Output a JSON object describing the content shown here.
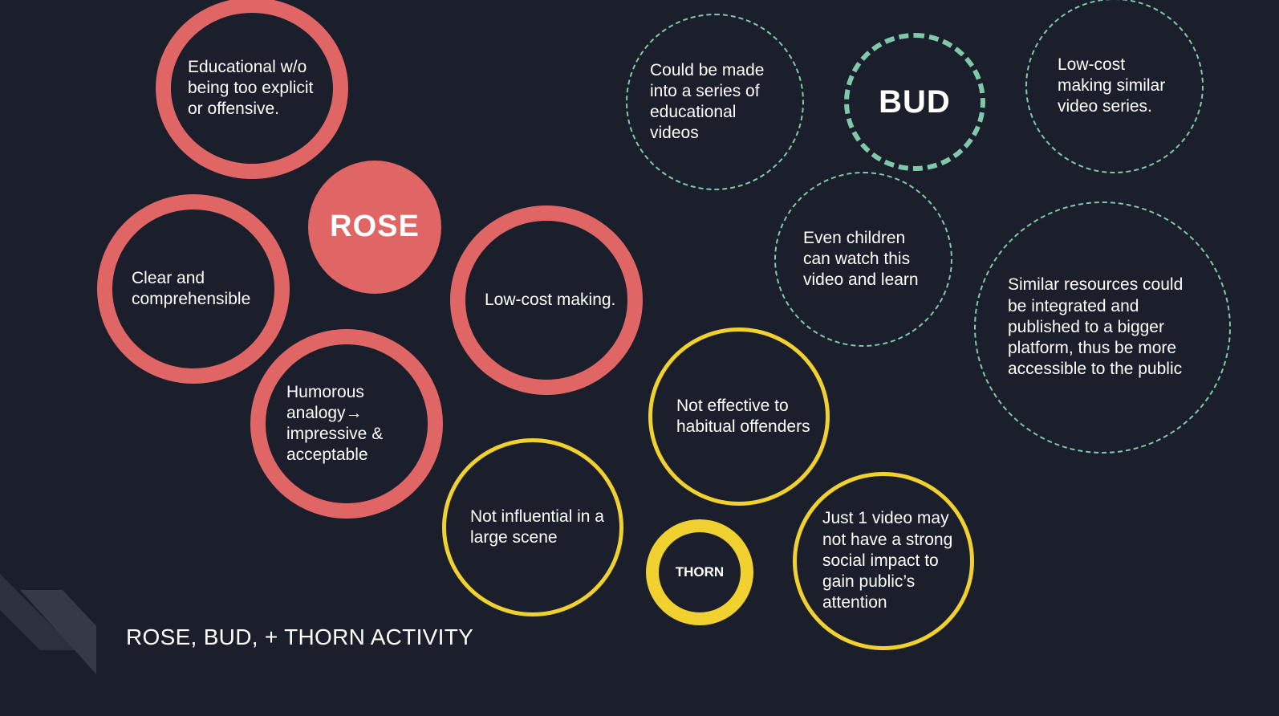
{
  "labels": {
    "rose": "ROSE",
    "bud": "BUD",
    "thorn": "THORN"
  },
  "roses": [
    {
      "text": "Educational w/o\nbeing too explicit\nor offensive."
    },
    {
      "text": "Clear and\ncomprehensible"
    },
    {
      "text": "Low-cost making."
    },
    {
      "text": "Humorous\nanalogy→\nimpressive &\nacceptable"
    }
  ],
  "buds": [
    {
      "text": "Could be made\ninto a series of\neducational\nvideos"
    },
    {
      "text": "Low-cost\nmaking similar\nvideo series."
    },
    {
      "text": "Even children\ncan watch this\nvideo and learn"
    },
    {
      "text": "Similar resources could\nbe integrated and\npublished to a bigger\nplatform, thus be more\naccessible to the public"
    }
  ],
  "thorns": [
    {
      "text": "Not effective to\nhabitual offenders"
    },
    {
      "text": "Not influential in a\nlarge scene"
    },
    {
      "text": "Just 1 video may\nnot have a strong\nsocial impact to\ngain public’s\nattention"
    }
  ],
  "footer": {
    "title": "ROSE, BUD, + THORN ACTIVITY"
  },
  "colors": {
    "background": "#1b1f2b",
    "rose": "#e06666",
    "bud": "#7fc8a9",
    "thorn": "#f1d12f"
  }
}
